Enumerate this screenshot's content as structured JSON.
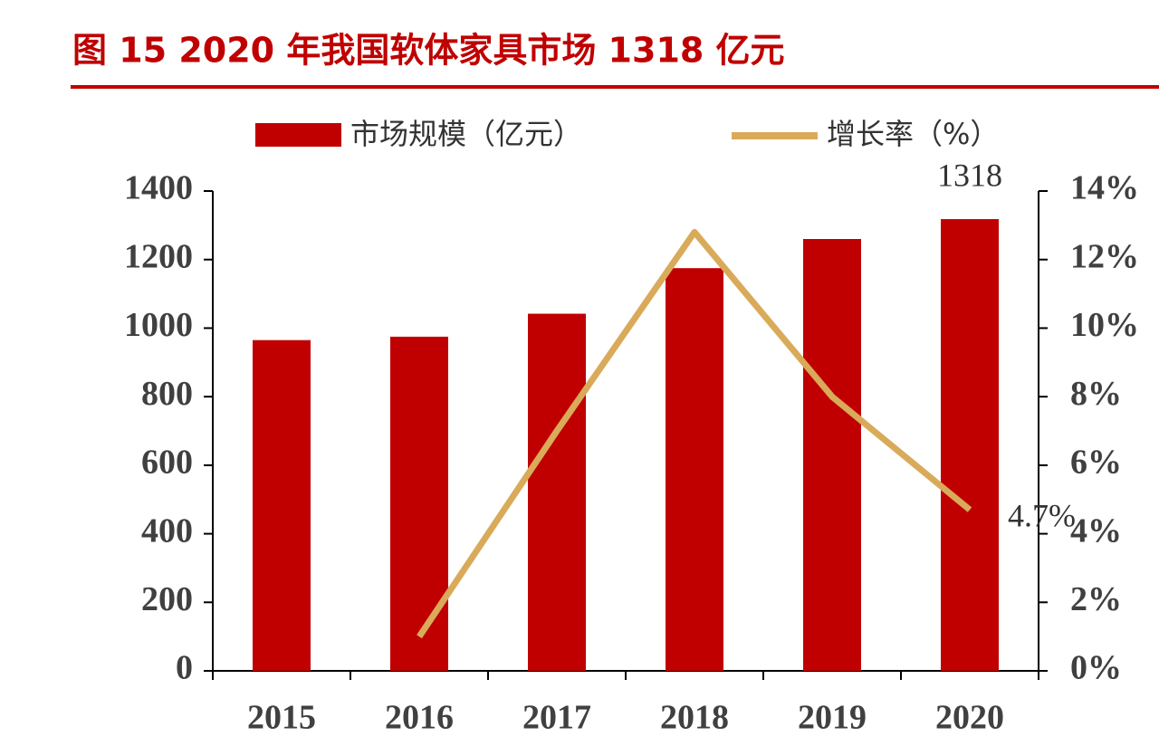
{
  "chart_data": {
    "type": "bar",
    "title": "图 15 2020 年我国软体家具市场 1318 亿元",
    "categories": [
      "2015",
      "2016",
      "2017",
      "2018",
      "2019",
      "2020"
    ],
    "series": [
      {
        "name": "市场规模（亿元）",
        "color": "#c00000",
        "values": [
          965,
          975,
          1042,
          1175,
          1260,
          1318
        ],
        "value_labels": [
          null,
          null,
          null,
          null,
          null,
          "1318"
        ]
      },
      {
        "name": "增长率（%）",
        "type": "line",
        "axis": "y2",
        "color": "#d9aa5a",
        "values": [
          null,
          1.0,
          7.0,
          12.8,
          8.0,
          4.7
        ],
        "value_labels": [
          null,
          null,
          null,
          null,
          null,
          "4.7%"
        ]
      }
    ],
    "ylim": [
      0,
      1400
    ],
    "yticks": [
      0,
      200,
      400,
      600,
      800,
      1000,
      1200,
      1400
    ],
    "y2lim": [
      0,
      14
    ],
    "y2ticks": [
      {
        "value": 0,
        "label": "0%"
      },
      {
        "value": 2,
        "label": "2%"
      },
      {
        "value": 4,
        "label": "4%"
      },
      {
        "value": 6,
        "label": "6%"
      },
      {
        "value": 8,
        "label": "8%"
      },
      {
        "value": 10,
        "label": "10%"
      },
      {
        "value": 12,
        "label": "12%"
      },
      {
        "value": 14,
        "label": "14%"
      }
    ],
    "legend": "top"
  }
}
